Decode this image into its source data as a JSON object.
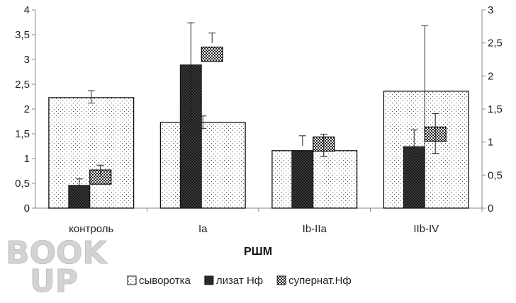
{
  "chart_data": {
    "type": "bar",
    "categories": [
      "контроль",
      "Ia",
      "Ib-IIa",
      "IIb-IV"
    ],
    "xlabel": "РШМ",
    "ylim_left": [
      0,
      4
    ],
    "ylim_right": [
      0,
      3
    ],
    "y_ticks_left": [
      "0",
      "0,5",
      "1",
      "1,5",
      "2",
      "2,5",
      "3",
      "3,5",
      "4"
    ],
    "y_ticks_right": [
      "0",
      "0,5",
      "1",
      "1,5",
      "2",
      "2,5",
      "3"
    ],
    "grid": false,
    "legend_position": "bottom",
    "series": [
      {
        "name": "сыворотка",
        "axis": "left",
        "values": [
          2.23,
          1.73,
          1.16,
          2.36
        ],
        "error_upper": [
          2.37,
          1.86,
          null,
          null
        ],
        "error_lower": [
          2.12,
          1.61,
          null,
          null
        ],
        "pattern": "light-dots"
      },
      {
        "name": "лизат Нф",
        "axis": "left",
        "values": [
          0.46,
          2.89,
          1.16,
          1.24
        ],
        "error_upper": [
          0.59,
          3.74,
          1.46,
          1.58
        ],
        "error_lower": [
          null,
          1.73,
          null,
          1.05
        ],
        "pattern": "dark-dots"
      },
      {
        "name": "супернат.Нф",
        "axis": "right",
        "values": [
          0.47,
          2.33,
          0.97,
          1.12
        ],
        "error_upper": [
          0.65,
          2.65,
          1.12,
          1.43
        ],
        "error_lower": [
          null,
          null,
          0.78,
          0.83
        ],
        "range_upper": [
          null,
          null,
          null,
          2.76
        ],
        "pattern": "checker"
      }
    ]
  },
  "watermark": {
    "line1": "BOOK",
    "line2": "UP"
  }
}
